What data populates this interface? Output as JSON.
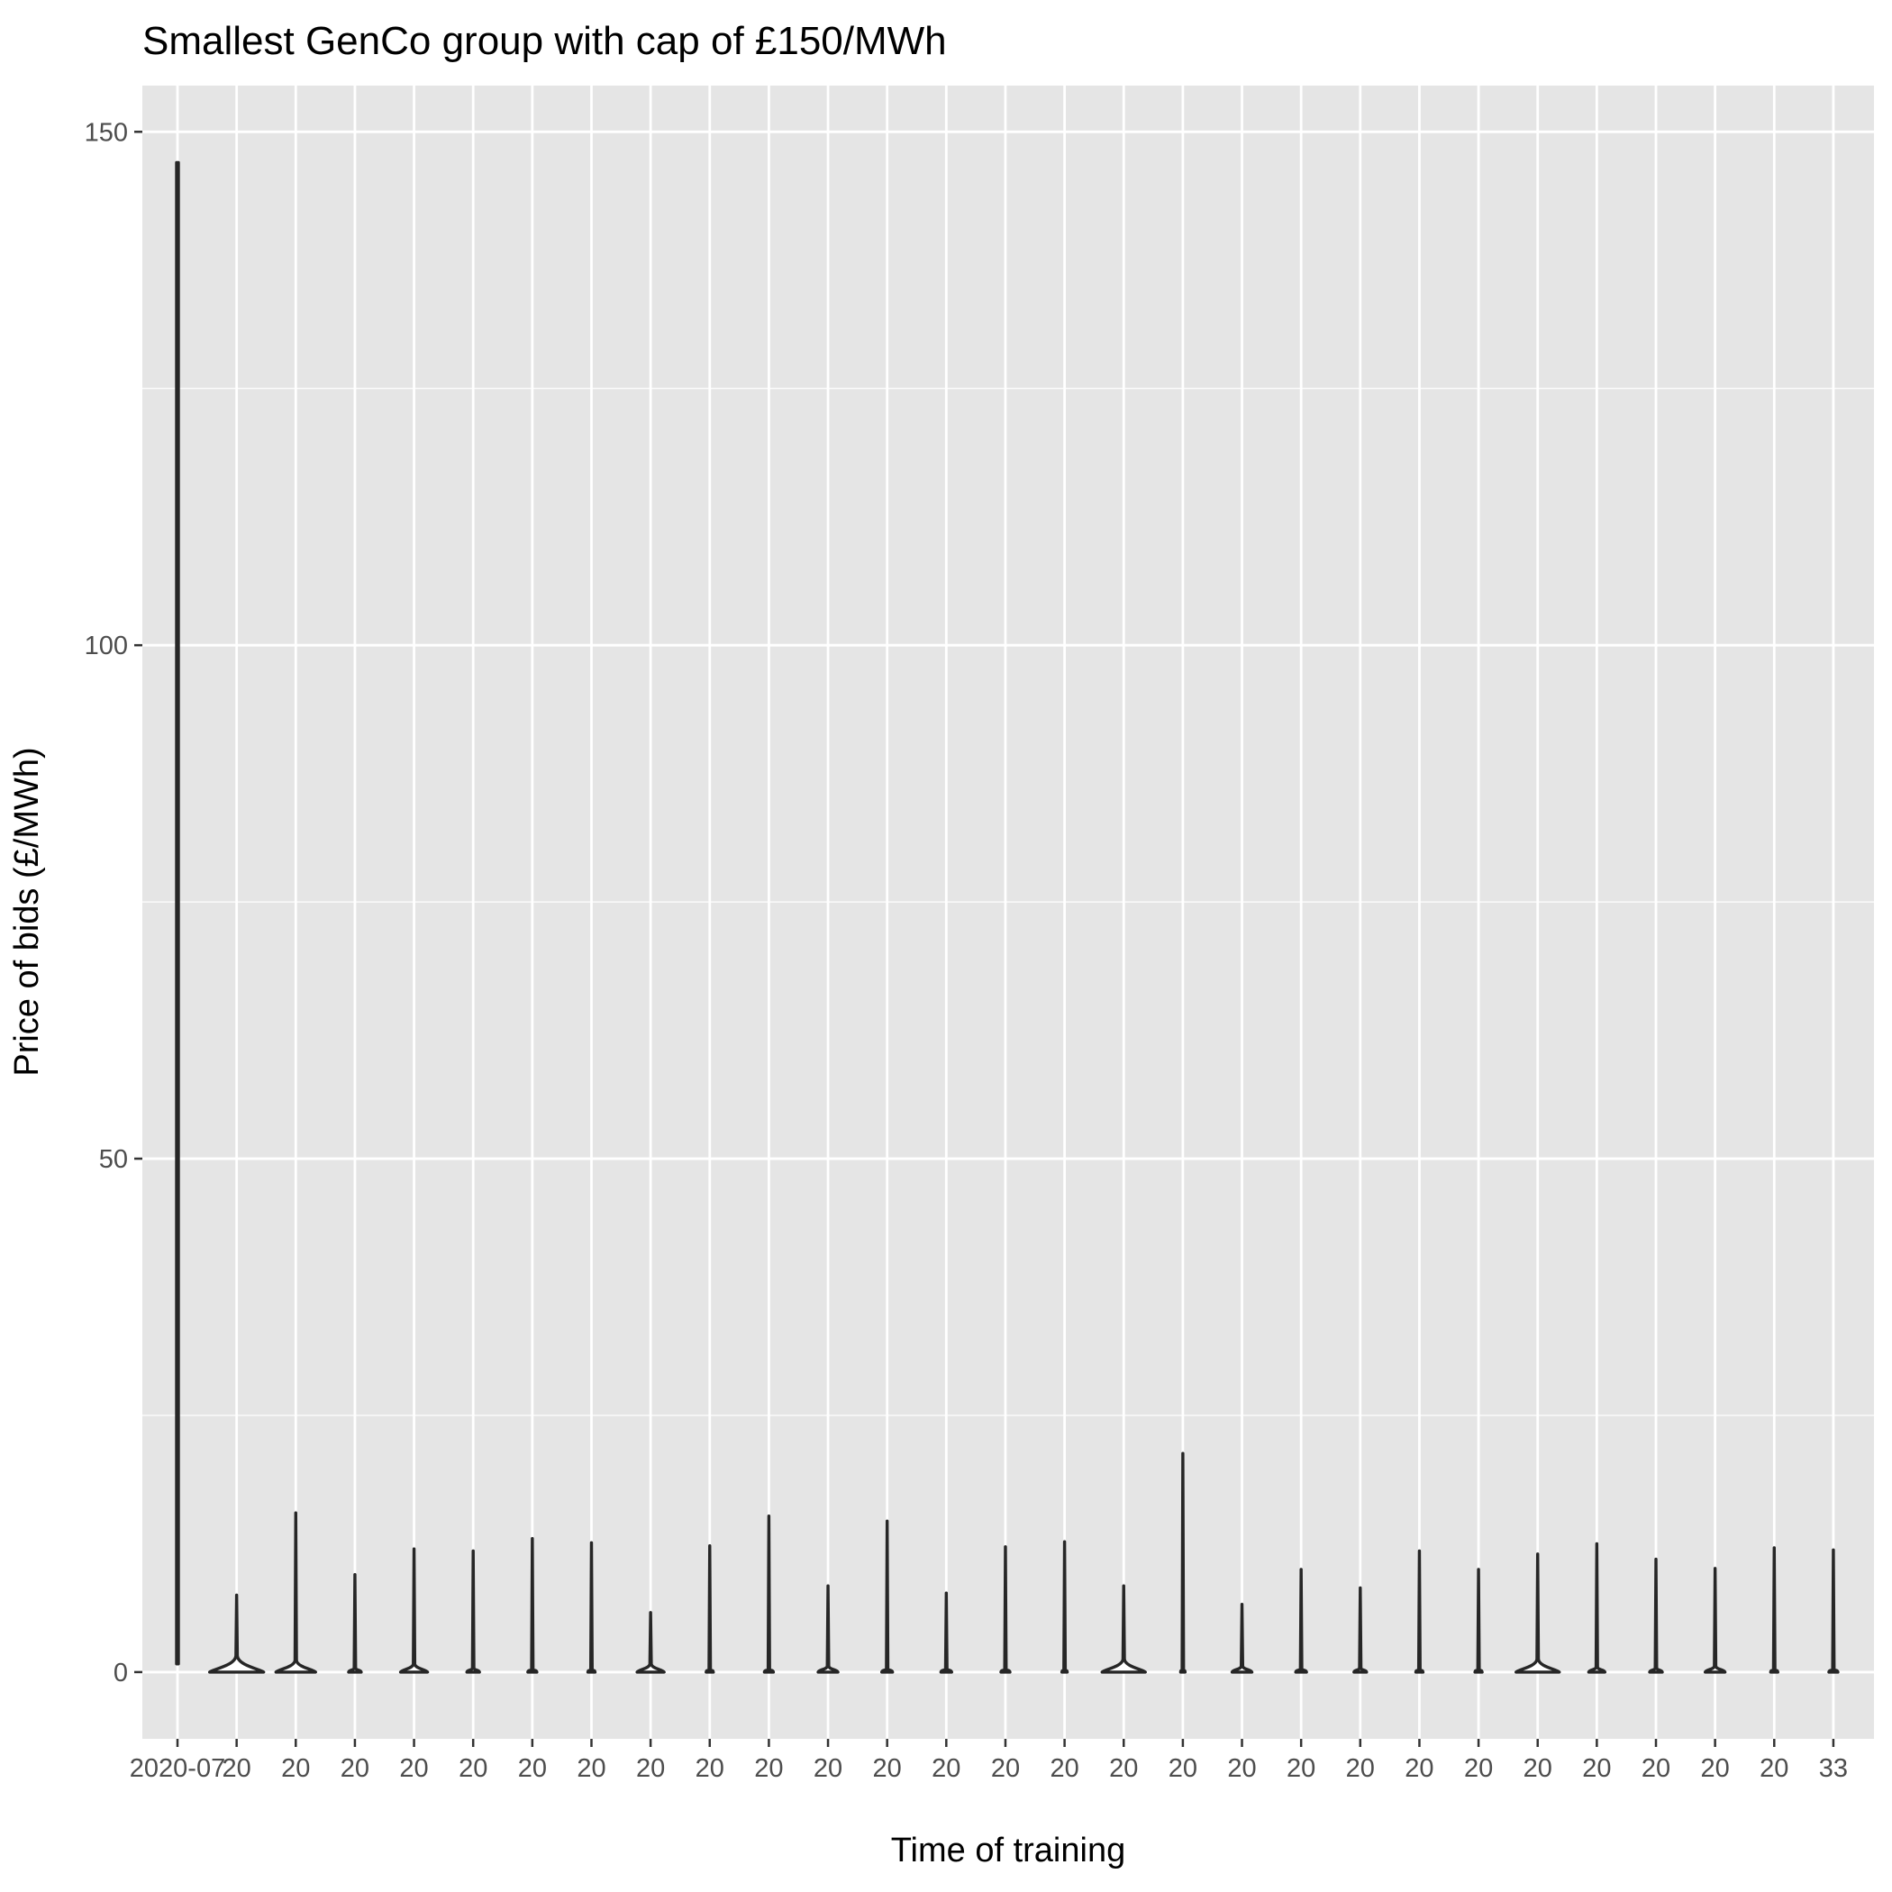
{
  "chart_data": {
    "type": "violin",
    "title": "Smallest GenCo group with cap of £150/MWh",
    "xlabel": "Time of training",
    "ylabel": "Price of bids (£/MWh)",
    "ylim": [
      -6.5,
      154.5
    ],
    "yticks": [
      0,
      50,
      100,
      150
    ],
    "grid": true,
    "legend": "none",
    "colors": {
      "panel": "#e5e5e5",
      "grid": "#ffffff",
      "violin_stroke": "#262626",
      "violin_fill": "#ffffff",
      "tick_text": "#4d4d4d"
    },
    "x_tick_labels_note": "29 overlapping category labels beginning with 2020-07…",
    "series": [
      {
        "max": 147.0,
        "min": 0.8,
        "wmax": 1.5
      },
      {
        "max": 7.5,
        "min": 0.0,
        "wmax": 30
      },
      {
        "max": 15.5,
        "min": 0.0,
        "wmax": 22
      },
      {
        "max": 9.5,
        "min": 0.0,
        "wmax": 7
      },
      {
        "max": 12.0,
        "min": 0.0,
        "wmax": 15
      },
      {
        "max": 11.8,
        "min": 0.0,
        "wmax": 7
      },
      {
        "max": 13.0,
        "min": 0.0,
        "wmax": 5
      },
      {
        "max": 12.6,
        "min": 0.0,
        "wmax": 4
      },
      {
        "max": 5.8,
        "min": 0.0,
        "wmax": 15
      },
      {
        "max": 12.3,
        "min": 0.0,
        "wmax": 4
      },
      {
        "max": 15.2,
        "min": 0.0,
        "wmax": 5
      },
      {
        "max": 8.4,
        "min": 0.0,
        "wmax": 11
      },
      {
        "max": 14.7,
        "min": 0.0,
        "wmax": 6
      },
      {
        "max": 7.7,
        "min": 0.0,
        "wmax": 6
      },
      {
        "max": 12.2,
        "min": 0.0,
        "wmax": 5
      },
      {
        "max": 12.7,
        "min": 0.0,
        "wmax": 3
      },
      {
        "max": 8.4,
        "min": 0.0,
        "wmax": 24
      },
      {
        "max": 21.3,
        "min": 0.0,
        "wmax": 2.5
      },
      {
        "max": 6.6,
        "min": 0.0,
        "wmax": 11
      },
      {
        "max": 10.0,
        "min": 0.0,
        "wmax": 6
      },
      {
        "max": 8.2,
        "min": 0.0,
        "wmax": 7
      },
      {
        "max": 11.8,
        "min": 0.0,
        "wmax": 4
      },
      {
        "max": 10.0,
        "min": 0.0,
        "wmax": 4
      },
      {
        "max": 11.5,
        "min": 0.0,
        "wmax": 24
      },
      {
        "max": 12.5,
        "min": 0.0,
        "wmax": 9
      },
      {
        "max": 11.0,
        "min": 0.0,
        "wmax": 7
      },
      {
        "max": 10.1,
        "min": 0.0,
        "wmax": 11
      },
      {
        "max": 12.1,
        "min": 0.0,
        "wmax": 4
      },
      {
        "max": 11.9,
        "min": 0.0,
        "wmax": 5
      }
    ]
  }
}
